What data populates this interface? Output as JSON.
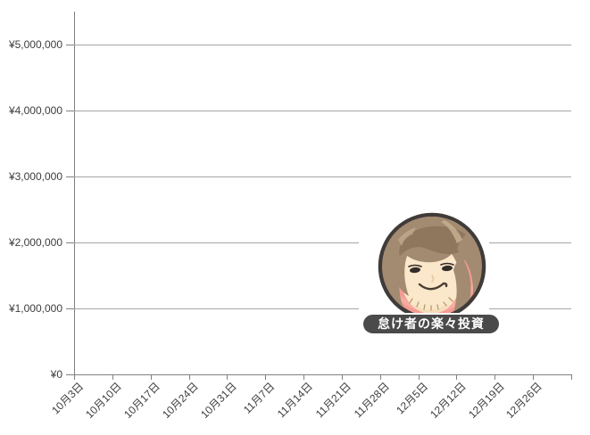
{
  "chart_data": {
    "type": "line",
    "title": "",
    "x_categories": [
      "10月3日",
      "10月10日",
      "10月17日",
      "10月24日",
      "10月31日",
      "11月7日",
      "11月14日",
      "11月21日",
      "11月28日",
      "12月5日",
      "12月12日",
      "12月19日",
      "12月26日"
    ],
    "y_tick_labels": [
      "¥0",
      "¥1,000,000",
      "¥2,000,000",
      "¥3,000,000",
      "¥4,000,000",
      "¥5,000,000"
    ],
    "y_axis": {
      "min": 0,
      "max": 5500000,
      "major_unit": 1000000,
      "currency_symbol": "¥"
    },
    "series": [],
    "layout": {
      "grid": "horizontal gridlines at each major unit",
      "legend": "none",
      "x_label_rotation_deg": -45,
      "plot_area_empty": true
    }
  },
  "overlay": {
    "badge_label": "怠け者の楽々投資",
    "avatar": "cartoon-face-avatar"
  },
  "colors": {
    "background": "#FFFFFF",
    "gridline": "#A6A6A6",
    "axis": "#808080",
    "tick_label": "#3D3D3D",
    "avatar_ring": "#F69B93",
    "avatar_outline": "#3F3B39",
    "hair": "#A28B71",
    "hair_dark": "#8D765B",
    "hair_highlight": "#C6AF90",
    "skin": "#FBE7C9",
    "badge_bg": "#4A4A4A",
    "badge_text": "#FFFFFF"
  }
}
